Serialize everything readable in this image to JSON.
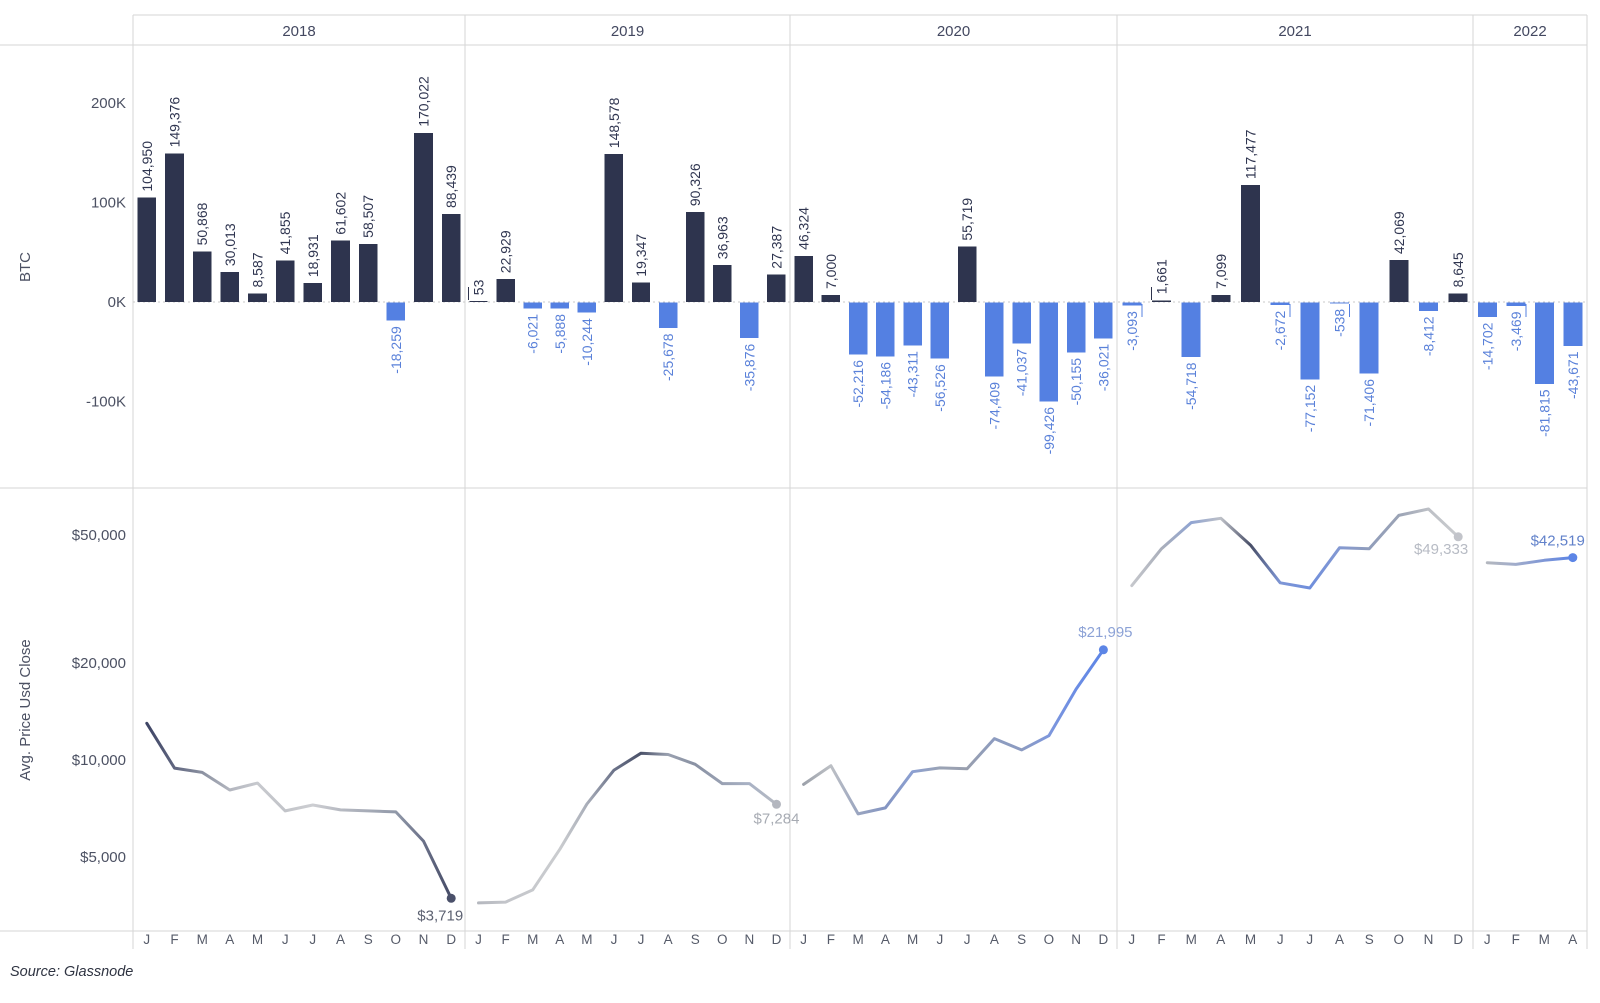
{
  "source": "Source: Glassnode",
  "colors": {
    "bar_positive": "#2e344e",
    "bar_negative": "#5480e2",
    "label_positive": "#2f3550",
    "label_negative": "#5a81d9",
    "axis_text": "#4c5163",
    "year_text": "#434860",
    "month_text": "#565b69",
    "grid": "#d6d6d6",
    "zero_line": "#c9c9c9",
    "source_text": "#2f3442"
  },
  "axes": {
    "top_ylabel": "BTC",
    "bottom_ylabel": "Avg. Price Usd Close",
    "top_ticks": [
      {
        "label": "200K",
        "value": 200000
      },
      {
        "label": "100K",
        "value": 100000
      },
      {
        "label": "0K",
        "value": 0
      },
      {
        "label": "-100K",
        "value": -100000
      }
    ],
    "bottom_ticks": [
      {
        "label": "$50,000",
        "value": 50000
      },
      {
        "label": "$20,000",
        "value": 20000
      },
      {
        "label": "$10,000",
        "value": 10000
      },
      {
        "label": "$5,000",
        "value": 5000
      }
    ]
  },
  "chart_data": [
    {
      "type": "bar",
      "ylabel": "BTC",
      "ylim": [
        -187000,
        258000
      ],
      "years": [
        {
          "label": "2018",
          "months": [
            "J",
            "F",
            "M",
            "A",
            "M",
            "J",
            "J",
            "A",
            "S",
            "O",
            "N",
            "D"
          ],
          "values": [
            104950,
            149376,
            50868,
            30013,
            8587,
            41855,
            18931,
            61602,
            58507,
            -18259,
            170022,
            88439
          ],
          "labels": [
            "104,950",
            "149,376",
            "50,868",
            "30,013",
            "8,587",
            "41,855",
            "18,931",
            "61,602",
            "58,507",
            "-18,259",
            "170,022",
            "88,439"
          ]
        },
        {
          "label": "2019",
          "months": [
            "J",
            "F",
            "M",
            "A",
            "M",
            "J",
            "J",
            "A",
            "S",
            "O",
            "N",
            "D"
          ],
          "values": [
            53,
            22929,
            -6021,
            -5888,
            -10244,
            148578,
            19347,
            -25678,
            90326,
            36963,
            -35876,
            27387
          ],
          "labels": [
            "53",
            "22,929",
            "-6,021",
            "-5,888",
            "-10,244",
            "148,578",
            "19,347",
            "-25,678",
            "90,326",
            "36,963",
            "-35,876",
            "27,387"
          ]
        },
        {
          "label": "2020",
          "months": [
            "J",
            "F",
            "M",
            "A",
            "M",
            "J",
            "J",
            "A",
            "S",
            "O",
            "N",
            "D"
          ],
          "values": [
            46324,
            7000,
            -52216,
            -54186,
            -43311,
            -56526,
            55719,
            -74409,
            -41037,
            -99426,
            -50155,
            -36021
          ],
          "labels": [
            "46,324",
            "7,000",
            "-52,216",
            "-54,186",
            "-43,311",
            "-56,526",
            "55,719",
            "-74,409",
            "-41,037",
            "-99,426",
            "-50,155",
            "-36,021"
          ]
        },
        {
          "label": "2021",
          "months": [
            "J",
            "F",
            "M",
            "A",
            "M",
            "J",
            "J",
            "A",
            "S",
            "O",
            "N",
            "D"
          ],
          "values": [
            -3093,
            1661,
            -54718,
            7099,
            117477,
            -2672,
            -77152,
            -538,
            -71406,
            42069,
            -8412,
            8645
          ],
          "labels": [
            "-3,093",
            "1,661",
            "-54,718",
            "7,099",
            "117,477",
            "-2,672",
            "-77,152",
            "-538",
            "-71,406",
            "42,069",
            "-8,412",
            "8,645"
          ]
        },
        {
          "label": "2022",
          "months": [
            "J",
            "F",
            "M",
            "A"
          ],
          "values": [
            -14702,
            -3469,
            -81815,
            -43671
          ],
          "labels": [
            "-14,702",
            "-3,469",
            "-81,815",
            "-43,671"
          ]
        }
      ]
    },
    {
      "type": "line",
      "ylabel": "Avg. Price Usd Close",
      "yscale": "log",
      "ylim": [
        2900,
        70000
      ],
      "years": [
        {
          "label": "2018",
          "values": [
            13000,
            9440,
            9150,
            8070,
            8480,
            6950,
            7250,
            7000,
            6950,
            6900,
            5600,
            3719
          ],
          "end_label": "$3,719",
          "end_label_color": "#5d6272",
          "dot_color": "#4a506a",
          "point_colors": [
            "#3e4565",
            "#606680",
            "#8b91a1",
            "#b3b6bf",
            "#c7c9ce",
            "#c2c4c9",
            "#cdced2",
            "#b7bac2",
            "#a6abb7",
            "#9199a9",
            "#6b7189",
            "#454b66"
          ]
        },
        {
          "label": "2019",
          "values": [
            3600,
            3620,
            3950,
            5280,
            7300,
            9300,
            10500,
            10400,
            9700,
            8450,
            8450,
            7284
          ],
          "end_label": "$7,284",
          "end_label_color": "#a7abb3",
          "dot_color": "#b4b7bf",
          "point_colors": [
            "#b5b8bf",
            "#c3c5ca",
            "#c7c9cd",
            "#cacccf",
            "#a9aeb9",
            "#6b7289",
            "#4b5269",
            "#9aa1b0",
            "#8991a3",
            "#99a1b3",
            "#a9b2c5",
            "#b6bac2"
          ]
        },
        {
          "label": "2020",
          "values": [
            8400,
            9600,
            6800,
            7100,
            9200,
            9450,
            9400,
            11650,
            10750,
            11900,
            16600,
            21995
          ],
          "end_label": "$21,995",
          "end_label_color": "#8ca2d6",
          "dot_color": "#5c85e6",
          "point_colors": [
            "#9ca1aa",
            "#bdc0c5",
            "#9aa5c0",
            "#8495c2",
            "#8ca0d2",
            "#9aa3b5",
            "#999fae",
            "#8d9cc0",
            "#8c9bc1",
            "#7e97dc",
            "#6c8de4",
            "#5c85e6"
          ]
        },
        {
          "label": "2021",
          "values": [
            34800,
            45300,
            54600,
            56300,
            46500,
            35500,
            34200,
            45600,
            45300,
            57500,
            60200,
            49333
          ],
          "end_label": "$49,333",
          "end_label_color": "#b7bbc4",
          "dot_color": "#c2c4ca",
          "point_colors": [
            "#c5c7cc",
            "#aaafbb",
            "#90a4d2",
            "#bdc0c7",
            "#484e67",
            "#7e96d6",
            "#6f8edc",
            "#8499d2",
            "#909dbb",
            "#9ba3b5",
            "#bdc0c6",
            "#cacccf"
          ]
        },
        {
          "label": "2022",
          "values": [
            41000,
            40500,
            41700,
            42519
          ],
          "end_label": "$42,519",
          "end_label_color": "#6181ca",
          "dot_color": "#5c85e6",
          "point_colors": [
            "#b3b7bf",
            "#a0accb",
            "#7e96d6",
            "#5c85e6"
          ]
        }
      ]
    }
  ]
}
